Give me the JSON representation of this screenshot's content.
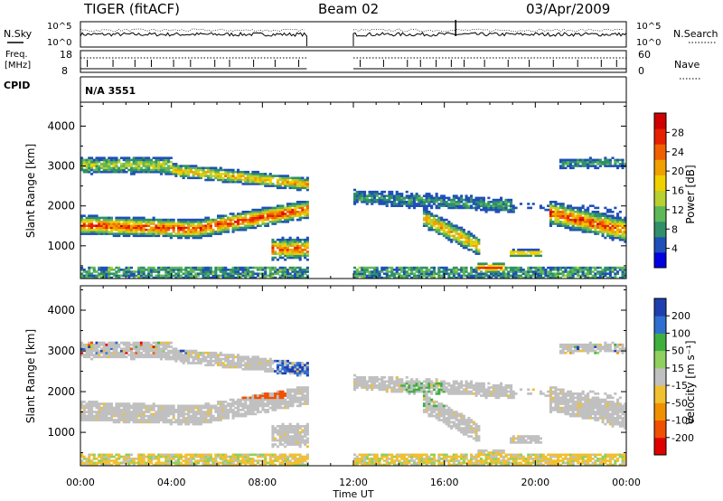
{
  "header": {
    "radar": "TIGER (fitACF)",
    "beam": "Beam 02",
    "date": "03/Apr/2009"
  },
  "top_panels": {
    "nsky_label": "N.Sky",
    "nsearch_label": "N.Search",
    "freq_label_1": "Freq.",
    "freq_label_2": "[MHz]",
    "nave_label": "Nave",
    "cpid_label": "CPID",
    "cpid_value": "N/A 3551",
    "noise_ticks": [
      "10^5",
      "10^0"
    ],
    "freq_ticks": [
      "18",
      "8"
    ],
    "nave_ticks": [
      "60",
      "0"
    ]
  },
  "chart_data": [
    {
      "type": "heatmap",
      "name": "Power",
      "ylabel": "Slant Range [km]",
      "xlabel": "Time UT",
      "x_ticks": [
        "00:00",
        "04:00",
        "08:00",
        "12:00",
        "16:00",
        "20:00",
        "00:00"
      ],
      "y_ticks": [
        1000,
        2000,
        3000,
        4000
      ],
      "xlim": [
        0,
        24
      ],
      "ylim": [
        180,
        4600
      ],
      "data_gap_hours": [
        9.95,
        12.0
      ],
      "colorbar": {
        "label": "Power [dB]",
        "ticks": [
          4,
          8,
          12,
          16,
          20,
          24,
          28
        ],
        "range": [
          0,
          32
        ]
      },
      "colors": [
        "#0000e0",
        "#1f4fb8",
        "#2f8f6a",
        "#5fb858",
        "#b8d030",
        "#f0d000",
        "#f0a000",
        "#f06000",
        "#e82000",
        "#d00000"
      ]
    },
    {
      "type": "heatmap",
      "name": "Velocity",
      "ylabel": "Slant Range [km]",
      "xlabel": "Time UT",
      "x_ticks": [
        "00:00",
        "04:00",
        "08:00",
        "12:00",
        "16:00",
        "20:00",
        "00:00"
      ],
      "y_ticks": [
        1000,
        2000,
        3000,
        4000
      ],
      "xlim": [
        0,
        24
      ],
      "ylim": [
        180,
        4600
      ],
      "data_gap_hours": [
        9.95,
        12.0
      ],
      "colorbar": {
        "label": "Velocity [m s⁻¹]",
        "ticks": [
          200,
          100,
          50,
          15,
          -15,
          -50,
          -100,
          -200
        ]
      },
      "colors": [
        "#1f3fb0",
        "#2f6fd0",
        "#3fb03f",
        "#8fd060",
        "#c0c0c0",
        "#f0c030",
        "#f09000",
        "#f05000",
        "#e00000"
      ]
    }
  ]
}
